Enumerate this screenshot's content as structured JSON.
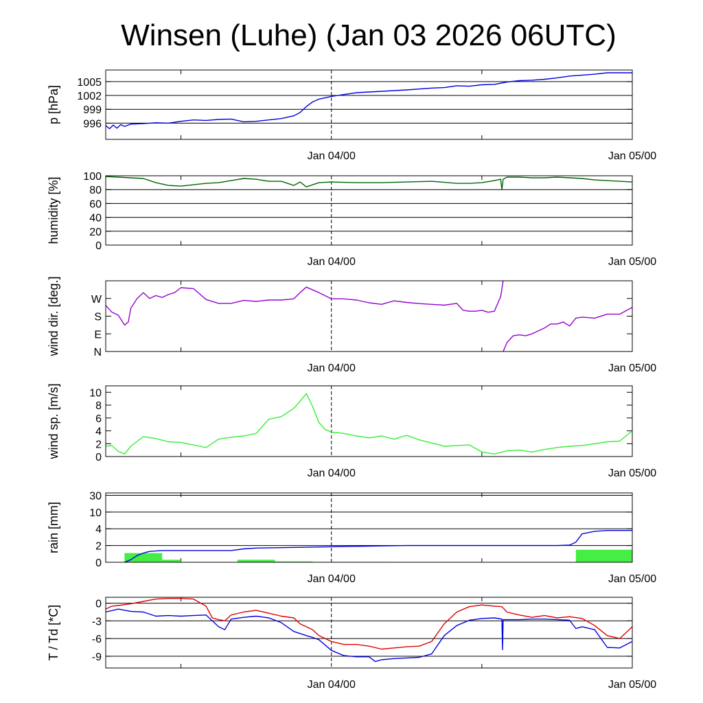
{
  "title": "Winsen (Luhe) (Jan 03 2026 06UTC)",
  "time_axis": {
    "start_hours": 0,
    "end_hours": 42,
    "minor_ticks_hours": [
      6,
      30
    ],
    "midnight_line_hours": 18,
    "labels": [
      {
        "text": "Jan 04/00",
        "hours": 18
      },
      {
        "text": "Jan 05/00",
        "hours": 42
      }
    ]
  },
  "colors": {
    "pressure": "#0000dd",
    "humidity": "#006400",
    "wind_dir": "#9400d3",
    "wind_speed": "#33ee33",
    "rain_bar": "#44ee44",
    "rain_cum": "#0000dd",
    "temperature": "#dd0000",
    "dewpoint": "#0000dd",
    "grid": "#000000"
  },
  "chart_data": [
    {
      "type": "line",
      "name": "pressure",
      "ylabel": "p [hPa]",
      "ylim": [
        992.5,
        1007.5
      ],
      "yticks": [
        {
          "v": 996,
          "label": "996"
        },
        {
          "v": 999,
          "label": "999"
        },
        {
          "v": 1002,
          "label": "1002"
        },
        {
          "v": 1005,
          "label": "1005"
        }
      ],
      "grid": true,
      "series": [
        {
          "name": "p",
          "color_key": "pressure",
          "x": [
            0,
            0.3,
            0.6,
            0.9,
            1.2,
            1.5,
            2.0,
            3,
            4,
            5,
            6,
            7,
            8,
            9,
            10,
            11,
            12,
            13,
            14,
            15,
            15.5,
            16,
            16.5,
            17,
            17.5,
            18,
            19,
            20,
            22,
            24,
            26,
            27,
            28,
            29,
            30,
            31,
            32,
            33,
            34,
            35,
            36,
            37,
            38,
            39,
            40,
            41,
            42
          ],
          "y": [
            995.5,
            994.8,
            995.6,
            994.9,
            995.7,
            995.3,
            995.8,
            995.9,
            996.1,
            996.0,
            996.4,
            996.7,
            996.6,
            996.8,
            996.9,
            996.3,
            996.4,
            996.7,
            997.0,
            997.6,
            998.3,
            999.6,
            1000.6,
            1001.2,
            1001.5,
            1001.8,
            1002.2,
            1002.6,
            1002.9,
            1003.2,
            1003.6,
            1003.7,
            1004.1,
            1004.0,
            1004.3,
            1004.4,
            1004.9,
            1005.2,
            1005.3,
            1005.5,
            1005.8,
            1006.2,
            1006.4,
            1006.6,
            1006.9,
            1006.9,
            1006.9
          ]
        }
      ]
    },
    {
      "type": "line",
      "name": "humidity",
      "ylabel": "humidity [%]",
      "ylim": [
        0,
        100
      ],
      "yticks": [
        {
          "v": 0,
          "label": "0"
        },
        {
          "v": 20,
          "label": "20"
        },
        {
          "v": 40,
          "label": "40"
        },
        {
          "v": 60,
          "label": "60"
        },
        {
          "v": 80,
          "label": "80"
        },
        {
          "v": 100,
          "label": "100"
        }
      ],
      "grid": true,
      "series": [
        {
          "name": "rh",
          "color_key": "humidity",
          "x": [
            0,
            1,
            2,
            3,
            4,
            5,
            6,
            7,
            8,
            9,
            10,
            11,
            12,
            13,
            14,
            15,
            15.5,
            16,
            17,
            18,
            20,
            22,
            24,
            26,
            28,
            29,
            30,
            31,
            31.5,
            31.6,
            31.7,
            32,
            33,
            34,
            35,
            36,
            37,
            38,
            39,
            40,
            41,
            42
          ],
          "y": [
            99,
            98,
            97,
            96,
            90,
            86,
            85,
            87,
            89,
            90,
            93,
            96,
            95,
            92,
            92,
            86,
            91,
            84,
            90,
            91,
            90,
            90,
            91,
            92,
            89,
            89,
            90,
            93,
            95,
            80,
            95,
            98,
            98,
            97,
            97,
            98,
            97,
            96,
            94,
            93,
            92,
            91
          ]
        }
      ]
    },
    {
      "type": "line",
      "name": "wind_direction",
      "ylabel": "wind dir. [deg.]",
      "ylim": [
        0,
        360
      ],
      "yticks": [
        {
          "v": 0,
          "label": "N"
        },
        {
          "v": 90,
          "label": "E"
        },
        {
          "v": 180,
          "label": "S"
        },
        {
          "v": 270,
          "label": "W"
        }
      ],
      "grid": false,
      "series": [
        {
          "name": "dir",
          "color_key": "wind_dir",
          "segments": [
            {
              "x": [
                0,
                0.5,
                1.0,
                1.5,
                1.8,
                2.0,
                2.5,
                3.0,
                3.5,
                4.0,
                4.5,
                5,
                5.5,
                6,
                7,
                8,
                9,
                10,
                11,
                12,
                13,
                14,
                15,
                15.5,
                16,
                17,
                18,
                19,
                20,
                21,
                22,
                23,
                24,
                25,
                26,
                27,
                28,
                28.5,
                29,
                29.5,
                30,
                30.5,
                31,
                31.5,
                31.7
              ],
              "y": [
                235,
                200,
                185,
                135,
                150,
                220,
                270,
                300,
                270,
                285,
                275,
                290,
                300,
                325,
                320,
                265,
                245,
                245,
                260,
                255,
                262,
                262,
                268,
                300,
                328,
                300,
                268,
                268,
                262,
                248,
                240,
                258,
                250,
                244,
                240,
                236,
                245,
                210,
                205,
                205,
                210,
                200,
                205,
                280,
                360
              ]
            },
            {
              "x": [
                31.7,
                32.0,
                32.5,
                33.0,
                33.5,
                34.0,
                35.0,
                35.5,
                36.0,
                36.5,
                37.0,
                37.5,
                38.0,
                39.0,
                40.0,
                41.0,
                42.0
              ],
              "y": [
                0,
                45,
                80,
                85,
                80,
                90,
                120,
                140,
                140,
                150,
                130,
                170,
                175,
                170,
                190,
                190,
                225
              ]
            }
          ]
        }
      ]
    },
    {
      "type": "line",
      "name": "wind_speed",
      "ylabel": "wind sp. [m/s]",
      "ylim": [
        0,
        11
      ],
      "yticks": [
        {
          "v": 0,
          "label": "0"
        },
        {
          "v": 2,
          "label": "2"
        },
        {
          "v": 4,
          "label": "4"
        },
        {
          "v": 6,
          "label": "6"
        },
        {
          "v": 8,
          "label": "8"
        },
        {
          "v": 10,
          "label": "10"
        }
      ],
      "grid": false,
      "series": [
        {
          "name": "spd",
          "color_key": "wind_speed",
          "x": [
            0,
            0.5,
            1,
            1.5,
            2,
            3,
            4,
            5,
            6,
            7,
            8,
            9,
            10,
            11,
            12,
            13,
            14,
            15,
            15.5,
            16,
            16.5,
            17,
            17.5,
            18,
            19,
            20,
            21,
            22,
            23,
            24,
            25,
            26,
            27,
            28,
            29,
            30,
            31,
            32,
            33,
            34,
            35,
            36,
            37,
            38,
            39,
            40,
            41,
            42
          ],
          "y": [
            1.6,
            1.7,
            0.8,
            0.4,
            1.6,
            3.1,
            2.8,
            2.3,
            2.2,
            1.8,
            1.4,
            2.7,
            3.0,
            3.2,
            3.6,
            5.8,
            6.2,
            7.5,
            8.6,
            9.8,
            7.8,
            5.3,
            4.2,
            3.8,
            3.6,
            3.2,
            2.9,
            3.2,
            2.7,
            3.3,
            2.6,
            2.1,
            1.6,
            1.7,
            1.8,
            0.7,
            0.4,
            0.9,
            1.0,
            0.7,
            1.1,
            1.4,
            1.6,
            1.7,
            2.0,
            2.3,
            2.4,
            4.0
          ]
        }
      ]
    },
    {
      "type": "bar",
      "name": "rain",
      "ylabel": "rain [mm]",
      "ylim": [
        0,
        30
      ],
      "yticks": [
        {
          "v": 0,
          "label": "0"
        },
        {
          "v": 2,
          "label": "2"
        },
        {
          "v": 4,
          "label": "4"
        },
        {
          "v": 10,
          "label": "10"
        },
        {
          "v": 30,
          "label": "30"
        }
      ],
      "grid": true,
      "bars": [
        {
          "start": 1.5,
          "end": 4.5,
          "value": 1.1
        },
        {
          "start": 4.5,
          "end": 6.0,
          "value": 0.3
        },
        {
          "start": 10.5,
          "end": 13.5,
          "value": 0.3
        },
        {
          "start": 13.5,
          "end": 16.5,
          "value": 0.1
        },
        {
          "start": 16.5,
          "end": 22.5,
          "value": 0.05
        },
        {
          "start": 37.5,
          "end": 42.0,
          "value": 1.5
        }
      ],
      "series": [
        {
          "name": "cumulative",
          "color_key": "rain_cum",
          "x": [
            1.5,
            2.0,
            2.5,
            3.0,
            3.5,
            4.5,
            6,
            8,
            10,
            11,
            12,
            14,
            16,
            18,
            20,
            22,
            24,
            26,
            28,
            30,
            32,
            34,
            36,
            37,
            37.5,
            38,
            39,
            40,
            42
          ],
          "y": [
            0,
            0.3,
            0.8,
            1.1,
            1.3,
            1.4,
            1.4,
            1.4,
            1.4,
            1.6,
            1.7,
            1.75,
            1.8,
            1.85,
            1.9,
            1.95,
            2.0,
            2.0,
            2.0,
            2.0,
            2.0,
            2.0,
            2.0,
            2.05,
            2.4,
            3.4,
            3.7,
            3.8,
            3.8
          ]
        }
      ]
    },
    {
      "type": "line",
      "name": "temperature_dewpoint",
      "ylabel": "T / Td [*C]",
      "ylim": [
        -11,
        1
      ],
      "yticks": [
        {
          "v": 0,
          "label": "0"
        },
        {
          "v": -3,
          "label": "-3"
        },
        {
          "v": -6,
          "label": "-6"
        },
        {
          "v": -9,
          "label": "-9"
        }
      ],
      "grid": true,
      "series": [
        {
          "name": "T",
          "color_key": "temperature",
          "x": [
            0,
            0.5,
            1,
            2,
            3,
            4,
            5,
            6,
            7,
            8,
            8.5,
            9,
            9.5,
            10,
            11,
            12,
            13,
            14,
            15,
            15.5,
            16,
            16.5,
            17,
            18,
            19,
            20,
            21,
            22,
            23,
            24,
            25,
            26,
            27,
            28,
            29,
            30,
            31,
            31.6,
            32,
            33,
            34,
            35,
            36,
            37,
            38,
            39,
            40,
            41,
            42
          ],
          "y": [
            -1.0,
            -0.5,
            -0.4,
            -0.1,
            0.3,
            0.7,
            0.8,
            0.8,
            0.7,
            -0.5,
            -2.5,
            -2.8,
            -3.0,
            -2.0,
            -1.5,
            -1.2,
            -1.7,
            -2.2,
            -2.5,
            -3.5,
            -4.0,
            -4.5,
            -5.5,
            -6.5,
            -7.0,
            -7.0,
            -7.3,
            -7.8,
            -7.6,
            -7.4,
            -7.3,
            -6.5,
            -3.5,
            -1.5,
            -0.6,
            -0.3,
            -0.5,
            -0.6,
            -1.5,
            -2.0,
            -2.4,
            -2.1,
            -2.5,
            -2.3,
            -2.6,
            -3.8,
            -5.5,
            -6.0,
            -4.0
          ]
        },
        {
          "name": "Td",
          "color_key": "dewpoint",
          "x": [
            0,
            1,
            2,
            3,
            4,
            5,
            6,
            7,
            8,
            8.5,
            9,
            9.5,
            10,
            11,
            12,
            13,
            14,
            15,
            16,
            16.5,
            17,
            18,
            19,
            20,
            21,
            21.5,
            22,
            23,
            24,
            25,
            26,
            27,
            28,
            29,
            30,
            31,
            31.6,
            31.65,
            31.7,
            32,
            33,
            34,
            35,
            36,
            37,
            37.5,
            38,
            39,
            40,
            41,
            42
          ],
          "y": [
            -1.5,
            -1.0,
            -1.4,
            -1.5,
            -2.2,
            -2.1,
            -2.2,
            -2.1,
            -2.0,
            -3.0,
            -4.0,
            -4.5,
            -2.7,
            -2.4,
            -2.2,
            -2.5,
            -3.3,
            -4.8,
            -5.5,
            -5.8,
            -6.2,
            -8.0,
            -8.9,
            -9.1,
            -9.1,
            -9.9,
            -9.6,
            -9.4,
            -9.3,
            -9.2,
            -8.6,
            -5.5,
            -3.8,
            -2.9,
            -2.6,
            -2.5,
            -2.7,
            -7.9,
            -2.8,
            -2.8,
            -2.8,
            -2.7,
            -2.7,
            -2.8,
            -2.9,
            -4.3,
            -4.0,
            -4.5,
            -7.5,
            -7.6,
            -6.5
          ]
        }
      ]
    }
  ]
}
